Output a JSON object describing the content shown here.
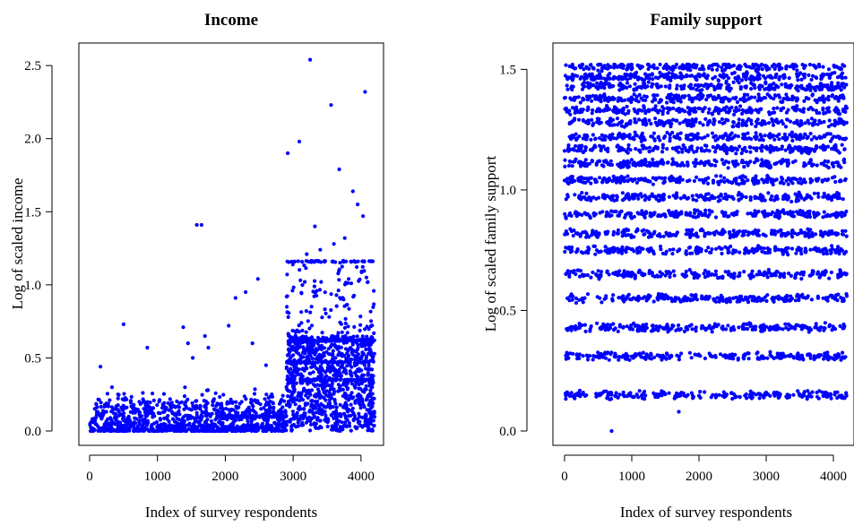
{
  "chart_data": [
    {
      "type": "scatter",
      "title": "Income",
      "xlabel": "Index of survey respondents",
      "ylabel": "Log of scaled income",
      "xlim": [
        0,
        4200
      ],
      "ylim": [
        0,
        2.55
      ],
      "x_ticks": [
        0,
        1000,
        2000,
        3000,
        4000
      ],
      "x_tick_labels": [
        "0",
        "1000",
        "2000",
        "3000",
        "4000"
      ],
      "y_ticks": [
        0.0,
        0.5,
        1.0,
        1.5,
        2.0,
        2.5
      ],
      "y_tick_labels": [
        "0.0",
        "0.5",
        "1.0",
        "1.5",
        "2.0",
        "2.5"
      ],
      "grid": false,
      "color": "#0000ff",
      "series": [
        {
          "regions": [
            {
              "x_range": [
                0,
                2900
              ],
              "y_range": [
                0.0,
                0.22
              ],
              "count": 900,
              "skew": 2.2
            },
            {
              "x_range": [
                200,
                2900
              ],
              "y_range": [
                0.0,
                0.3
              ],
              "count": 120,
              "skew": 1.2
            },
            {
              "x_range": [
                2900,
                4200
              ],
              "y_range": [
                0.0,
                0.65
              ],
              "count": 900,
              "skew": 1.0
            },
            {
              "x_range": [
                2900,
                4200
              ],
              "y_range": [
                0.6,
                1.16
              ],
              "count": 140,
              "skew": 1.3
            }
          ],
          "levels": [
            {
              "x_range": [
                1900,
                2900
              ],
              "y": 0.1,
              "count": 160
            },
            {
              "x_range": [
                2900,
                4200
              ],
              "y": 1.16,
              "count": 45
            },
            {
              "x_range": [
                2900,
                4200
              ],
              "y": 0.62,
              "count": 70
            },
            {
              "x_range": [
                2900,
                4200
              ],
              "y": 0.47,
              "count": 60
            },
            {
              "x_range": [
                2900,
                4200
              ],
              "y": 0.35,
              "count": 60
            }
          ],
          "points": [
            [
              500,
              0.73
            ],
            [
              160,
              0.44
            ],
            [
              330,
              0.3
            ],
            [
              850,
              0.57
            ],
            [
              1380,
              0.71
            ],
            [
              1450,
              0.6
            ],
            [
              1520,
              0.5
            ],
            [
              1580,
              1.41
            ],
            [
              1650,
              1.41
            ],
            [
              1750,
              0.57
            ],
            [
              1700,
              0.65
            ],
            [
              2050,
              0.72
            ],
            [
              2150,
              0.91
            ],
            [
              2300,
              0.95
            ],
            [
              2480,
              1.04
            ],
            [
              2400,
              0.6
            ],
            [
              2600,
              0.45
            ],
            [
              2920,
              1.9
            ],
            [
              3090,
              1.98
            ],
            [
              3250,
              2.54
            ],
            [
              3320,
              1.4
            ],
            [
              3400,
              1.24
            ],
            [
              3560,
              2.23
            ],
            [
              3680,
              1.79
            ],
            [
              3880,
              1.64
            ],
            [
              3950,
              1.55
            ],
            [
              4030,
              1.47
            ],
            [
              4060,
              2.32
            ],
            [
              3760,
              1.32
            ],
            [
              3200,
              1.21
            ],
            [
              3600,
              1.28
            ]
          ]
        }
      ]
    },
    {
      "type": "scatter",
      "title": "Family support",
      "xlabel": "Index of survey respondents",
      "ylabel": "Log of scaled family support",
      "xlim": [
        0,
        4200
      ],
      "ylim": [
        0,
        1.52
      ],
      "x_ticks": [
        0,
        1000,
        2000,
        3000,
        4000
      ],
      "x_tick_labels": [
        "0",
        "1000",
        "2000",
        "3000",
        "4000"
      ],
      "y_ticks": [
        0.0,
        0.5,
        1.0,
        1.5
      ],
      "y_tick_labels": [
        "0.0",
        "0.5",
        "1.0",
        "1.5"
      ],
      "grid": false,
      "color": "#0000ff",
      "series": [
        {
          "bands": [
            0.15,
            0.31,
            0.43,
            0.55,
            0.65,
            0.75,
            0.82,
            0.9,
            0.97,
            1.04,
            1.11,
            1.17,
            1.22,
            1.28,
            1.33,
            1.38,
            1.43,
            1.47,
            1.51
          ],
          "band_spread": 0.02,
          "points_per_band": 230,
          "points": [
            [
              700,
              0.0
            ],
            [
              1700,
              0.08
            ]
          ]
        }
      ]
    }
  ]
}
